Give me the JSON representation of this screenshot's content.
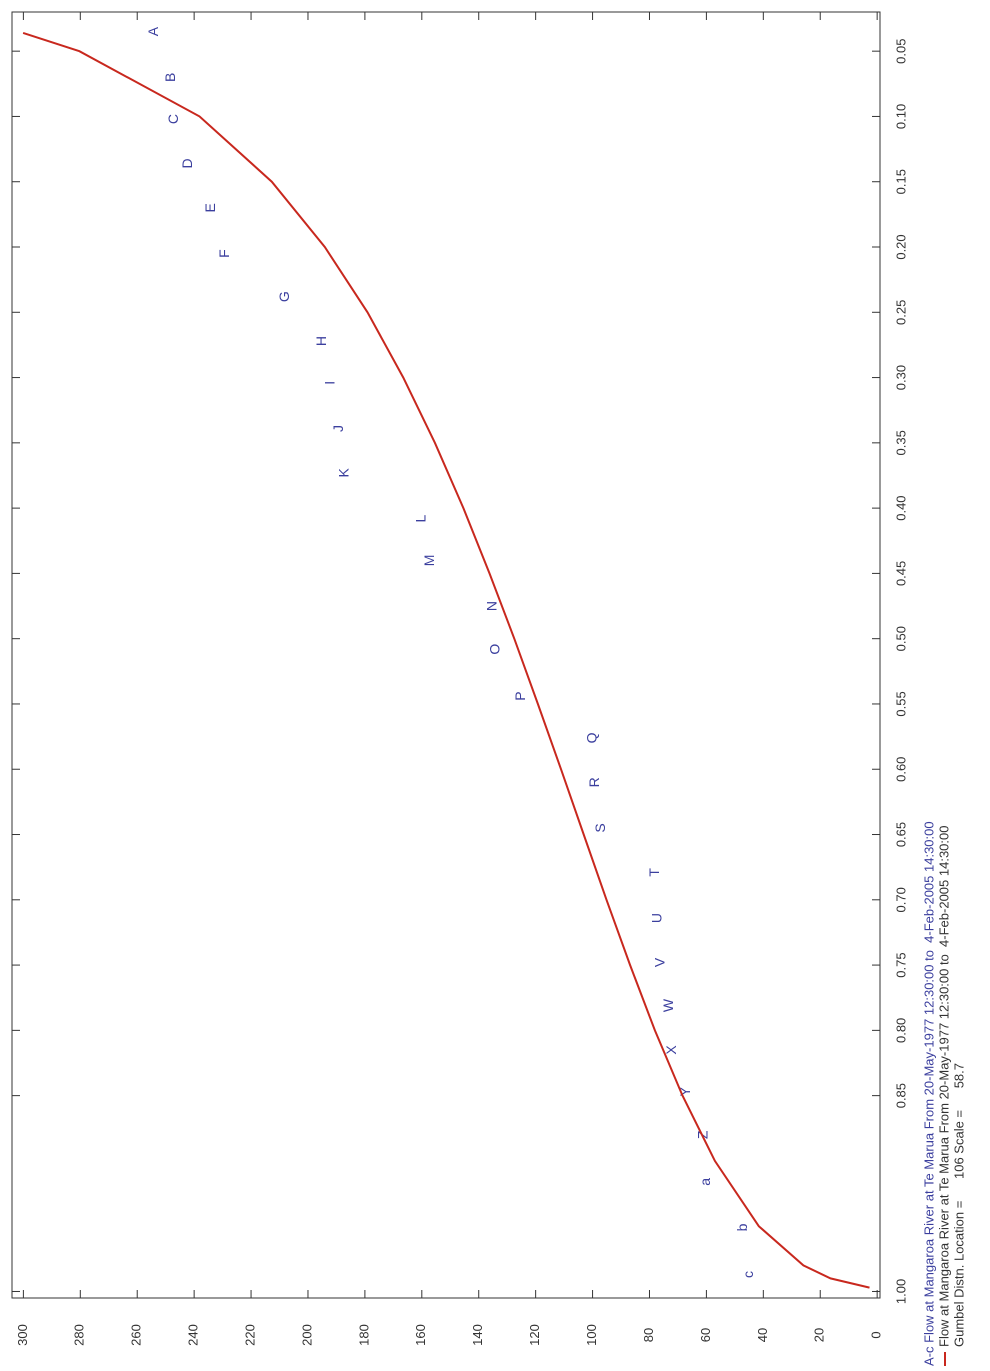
{
  "chart_data": {
    "type": "scatter",
    "xlim": [
      0.02,
      1.005
    ],
    "xticks": [
      0.05,
      {
        "value": 0.1,
        "label": "0.10"
      },
      0.15,
      {
        "value": 0.2,
        "label": "0.20"
      },
      0.25,
      {
        "value": 0.3,
        "label": "0.30"
      },
      0.35,
      {
        "value": 0.4,
        "label": "0.40"
      },
      0.45,
      {
        "value": 0.5,
        "label": "0.50"
      },
      0.55,
      {
        "value": 0.6,
        "label": "0.60"
      },
      0.65,
      {
        "value": 0.7,
        "label": "0.70"
      },
      0.75,
      {
        "value": 0.8,
        "label": "0.80"
      },
      0.85,
      {
        "value": 1,
        "label": "1.00"
      }
    ],
    "ylim": [
      -1,
      304
    ],
    "yticks": [
      0,
      20,
      40,
      60,
      80,
      100,
      120,
      140,
      160,
      180,
      200,
      220,
      240,
      260,
      280,
      300
    ],
    "series": [
      {
        "name": "A-c Flow at Mangaroa River at Te Marua From 20-May-1977 12:30:00 to  4-Feb-2005 14:30:00",
        "type": "scatter",
        "color": "#3b3f9e",
        "labels": [
          "A",
          "B",
          "C",
          "D",
          "E",
          "F",
          "G",
          "H",
          "I",
          "J",
          "K",
          "L",
          "M",
          "N",
          "O",
          "P",
          "Q",
          "R",
          "S",
          "T",
          "U",
          "V",
          "W",
          "X",
          "Y",
          "Z",
          "a",
          "b",
          "c"
        ],
        "x": [
          0.035,
          0.07,
          0.102,
          0.136,
          0.17,
          0.205,
          0.238,
          0.272,
          0.304,
          0.339,
          0.373,
          0.408,
          0.44,
          0.475,
          0.508,
          0.544,
          0.576,
          0.61,
          0.645,
          0.679,
          0.714,
          0.748,
          0.781,
          0.815,
          0.847,
          0.88,
          0.916,
          0.951,
          0.987
        ],
        "values": [
          254,
          248,
          247,
          242,
          234,
          229,
          208,
          195,
          192,
          189,
          187,
          160,
          157,
          135,
          134,
          125,
          100,
          99,
          97,
          78,
          77,
          76,
          73,
          72,
          67,
          61,
          60,
          47,
          45
        ]
      },
      {
        "name": "Flow at Mangaroa River at Te Marua From 20-May-1977 12:30:00 to  4-Feb-2005 14:30:00",
        "type": "line",
        "color": "#c8281e",
        "x": [
          0.036,
          0.05,
          0.1,
          0.15,
          0.2,
          0.25,
          0.3,
          0.35,
          0.4,
          0.45,
          0.5,
          0.55,
          0.6,
          0.65,
          0.7,
          0.75,
          0.8,
          0.85,
          0.9,
          0.95,
          0.98,
          0.99,
          0.997
        ],
        "values": [
          300.1,
          280.3,
          238.1,
          212.7,
          194.1,
          179.1,
          166.5,
          155.4,
          145.4,
          136.2,
          127.5,
          119.2,
          111.1,
          103.1,
          95.1,
          86.8,
          78.1,
          68.4,
          57.0,
          41.6,
          25.9,
          16.4,
          2.7
        ]
      }
    ],
    "annotation": "Gumbel Distn. Location =      106 Scale =      58.7"
  }
}
